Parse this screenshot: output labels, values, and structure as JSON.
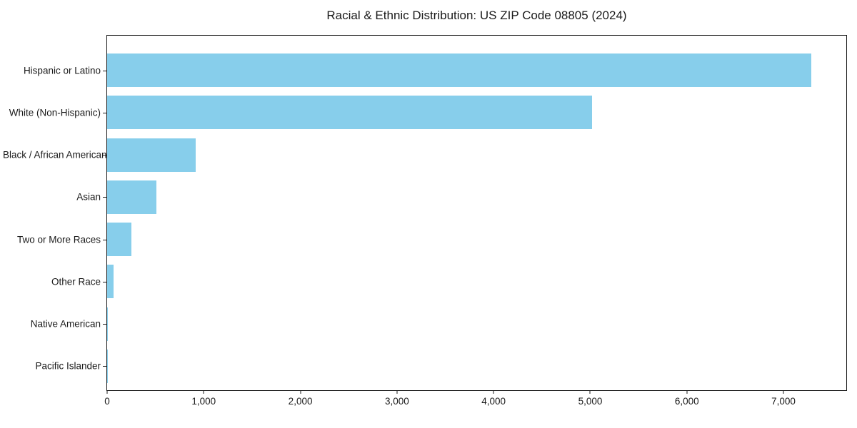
{
  "figure": {
    "background": "#ffffff",
    "text_color": "#1a1a1a"
  },
  "chart_data": {
    "type": "bar",
    "orientation": "horizontal",
    "title": "Racial & Ethnic Distribution: US ZIP Code 08805 (2024)",
    "categories": [
      "Hispanic or Latino",
      "White (Non-Hispanic)",
      "Black / African American",
      "Asian",
      "Two or More Races",
      "Other Race",
      "Native American",
      "Pacific Islander"
    ],
    "values": [
      7285,
      5020,
      920,
      510,
      250,
      65,
      8,
      2
    ],
    "xlabel": "",
    "ylabel": "",
    "xlim": [
      0,
      7650
    ],
    "xticks": [
      0,
      1000,
      2000,
      3000,
      4000,
      5000,
      6000,
      7000
    ],
    "xtick_labels": [
      "0",
      "1,000",
      "2,000",
      "3,000",
      "4,000",
      "5,000",
      "6,000",
      "7,000"
    ],
    "bar_color": "#87CEEB",
    "grid": false,
    "legend": "none"
  }
}
